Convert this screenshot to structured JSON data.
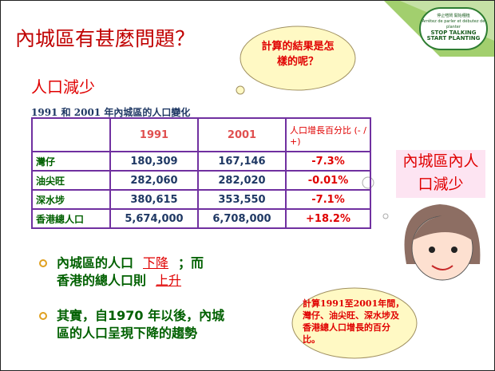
{
  "slide": {
    "title": "內城區有甚麼問題？",
    "callout_top": "計算的結果是怎樣的呢？",
    "subtitle": "人口減少",
    "caption": "1991 和 2001 年內城區的人口變化",
    "table": {
      "header": [
        "",
        "1991",
        "2001",
        "人口增長百分比 (- / +)"
      ],
      "rows": [
        [
          "灣仔",
          "180,309",
          "167,146",
          "-7.3%"
        ],
        [
          "油尖旺",
          "282,060",
          "282,020",
          "-0.01%"
        ],
        [
          "深水埗",
          "380,615",
          "353,550",
          "-7.1%"
        ],
        [
          "香港總人口",
          "5,674,000",
          "6,708,000",
          "+18.2%"
        ]
      ]
    },
    "side_label": "內城區內人口減少",
    "logo": [
      "停止喧鬧 開始種植",
      "Arrêtez de parler et débutez de planter",
      "STOP TALKING",
      "START PLANTING"
    ],
    "bullets": [
      {
        "before": "內城區的人口",
        "blank1": "下降",
        "middle": "；而",
        "line2": "香港的總人口則",
        "blank2": "上升"
      },
      {
        "text": "其實，自1970 年以後，內城區的人口呈現下降的趨勢"
      }
    ],
    "callout_bottom": "計算1991至2001年間，灣仔、油尖旺、深水埗及香港總人口增長的百分比。"
  }
}
